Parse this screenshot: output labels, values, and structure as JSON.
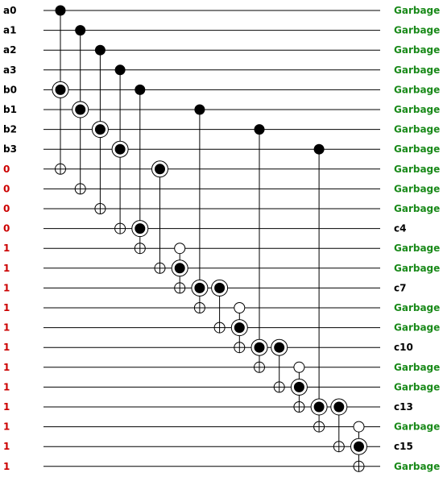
{
  "colors": {
    "input_label": "#000000",
    "constant_label": "#cc0000",
    "garbage_label": "#1a8a1a",
    "output_label": "#000000",
    "wire": "#000000"
  },
  "lines": [
    {
      "input": "a0",
      "input_kind": "input",
      "output": "Garbage",
      "output_kind": "garbage"
    },
    {
      "input": "a1",
      "input_kind": "input",
      "output": "Garbage",
      "output_kind": "garbage"
    },
    {
      "input": "a2",
      "input_kind": "input",
      "output": "Garbage",
      "output_kind": "garbage"
    },
    {
      "input": "a3",
      "input_kind": "input",
      "output": "Garbage",
      "output_kind": "garbage"
    },
    {
      "input": "b0",
      "input_kind": "input",
      "output": "Garbage",
      "output_kind": "garbage"
    },
    {
      "input": "b1",
      "input_kind": "input",
      "output": "Garbage",
      "output_kind": "garbage"
    },
    {
      "input": "b2",
      "input_kind": "input",
      "output": "Garbage",
      "output_kind": "garbage"
    },
    {
      "input": "b3",
      "input_kind": "input",
      "output": "Garbage",
      "output_kind": "garbage"
    },
    {
      "input": "0",
      "input_kind": "constant",
      "output": "Garbage",
      "output_kind": "garbage"
    },
    {
      "input": "0",
      "input_kind": "constant",
      "output": "Garbage",
      "output_kind": "garbage"
    },
    {
      "input": "0",
      "input_kind": "constant",
      "output": "Garbage",
      "output_kind": "garbage"
    },
    {
      "input": "0",
      "input_kind": "constant",
      "output": "c4",
      "output_kind": "output"
    },
    {
      "input": "1",
      "input_kind": "constant",
      "output": "Garbage",
      "output_kind": "garbage"
    },
    {
      "input": "1",
      "input_kind": "constant",
      "output": "Garbage",
      "output_kind": "garbage"
    },
    {
      "input": "1",
      "input_kind": "constant",
      "output": "c7",
      "output_kind": "output"
    },
    {
      "input": "1",
      "input_kind": "constant",
      "output": "Garbage",
      "output_kind": "garbage"
    },
    {
      "input": "1",
      "input_kind": "constant",
      "output": "Garbage",
      "output_kind": "garbage"
    },
    {
      "input": "1",
      "input_kind": "constant",
      "output": "c10",
      "output_kind": "output"
    },
    {
      "input": "1",
      "input_kind": "constant",
      "output": "Garbage",
      "output_kind": "garbage"
    },
    {
      "input": "1",
      "input_kind": "constant",
      "output": "Garbage",
      "output_kind": "garbage"
    },
    {
      "input": "1",
      "input_kind": "constant",
      "output": "c13",
      "output_kind": "output"
    },
    {
      "input": "1",
      "input_kind": "constant",
      "output": "Garbage",
      "output_kind": "garbage"
    },
    {
      "input": "1",
      "input_kind": "constant",
      "output": "c15",
      "output_kind": "output"
    },
    {
      "input": "1",
      "input_kind": "constant",
      "output": "Garbage",
      "output_kind": "garbage"
    }
  ],
  "gates": [
    {
      "nodes": [
        {
          "line": 0,
          "kind": "control"
        },
        {
          "line": 4,
          "kind": "target-control"
        },
        {
          "line": 8,
          "kind": "target"
        }
      ]
    },
    {
      "nodes": [
        {
          "line": 1,
          "kind": "control"
        },
        {
          "line": 5,
          "kind": "target-control"
        },
        {
          "line": 9,
          "kind": "target"
        }
      ]
    },
    {
      "nodes": [
        {
          "line": 2,
          "kind": "control"
        },
        {
          "line": 6,
          "kind": "target-control"
        },
        {
          "line": 10,
          "kind": "target"
        }
      ]
    },
    {
      "nodes": [
        {
          "line": 3,
          "kind": "control"
        },
        {
          "line": 7,
          "kind": "target-control"
        },
        {
          "line": 11,
          "kind": "target"
        }
      ]
    },
    {
      "nodes": [
        {
          "line": 4,
          "kind": "control"
        },
        {
          "line": 11,
          "kind": "target-control"
        },
        {
          "line": 12,
          "kind": "target"
        }
      ]
    },
    {
      "nodes": [
        {
          "line": 8,
          "kind": "target-control"
        },
        {
          "line": 13,
          "kind": "target"
        }
      ]
    },
    {
      "nodes": [
        {
          "line": 12,
          "kind": "open-control"
        },
        {
          "line": 13,
          "kind": "target-control"
        },
        {
          "line": 14,
          "kind": "target"
        }
      ]
    },
    {
      "nodes": [
        {
          "line": 5,
          "kind": "control"
        },
        {
          "line": 14,
          "kind": "target-control"
        },
        {
          "line": 15,
          "kind": "target"
        }
      ]
    },
    {
      "nodes": [
        {
          "line": 14,
          "kind": "target-control"
        },
        {
          "line": 16,
          "kind": "target"
        }
      ]
    },
    {
      "nodes": [
        {
          "line": 15,
          "kind": "open-control"
        },
        {
          "line": 16,
          "kind": "target-control"
        },
        {
          "line": 17,
          "kind": "target"
        }
      ]
    },
    {
      "nodes": [
        {
          "line": 6,
          "kind": "control"
        },
        {
          "line": 17,
          "kind": "target-control"
        },
        {
          "line": 18,
          "kind": "target"
        }
      ]
    },
    {
      "nodes": [
        {
          "line": 17,
          "kind": "target-control"
        },
        {
          "line": 19,
          "kind": "target"
        }
      ]
    },
    {
      "nodes": [
        {
          "line": 18,
          "kind": "open-control"
        },
        {
          "line": 19,
          "kind": "target-control"
        },
        {
          "line": 20,
          "kind": "target"
        }
      ]
    },
    {
      "nodes": [
        {
          "line": 7,
          "kind": "control"
        },
        {
          "line": 20,
          "kind": "target-control"
        },
        {
          "line": 21,
          "kind": "target"
        }
      ]
    },
    {
      "nodes": [
        {
          "line": 20,
          "kind": "target-control"
        },
        {
          "line": 22,
          "kind": "target"
        }
      ]
    },
    {
      "nodes": [
        {
          "line": 21,
          "kind": "open-control"
        },
        {
          "line": 22,
          "kind": "target-control"
        },
        {
          "line": 23,
          "kind": "target"
        }
      ]
    }
  ]
}
